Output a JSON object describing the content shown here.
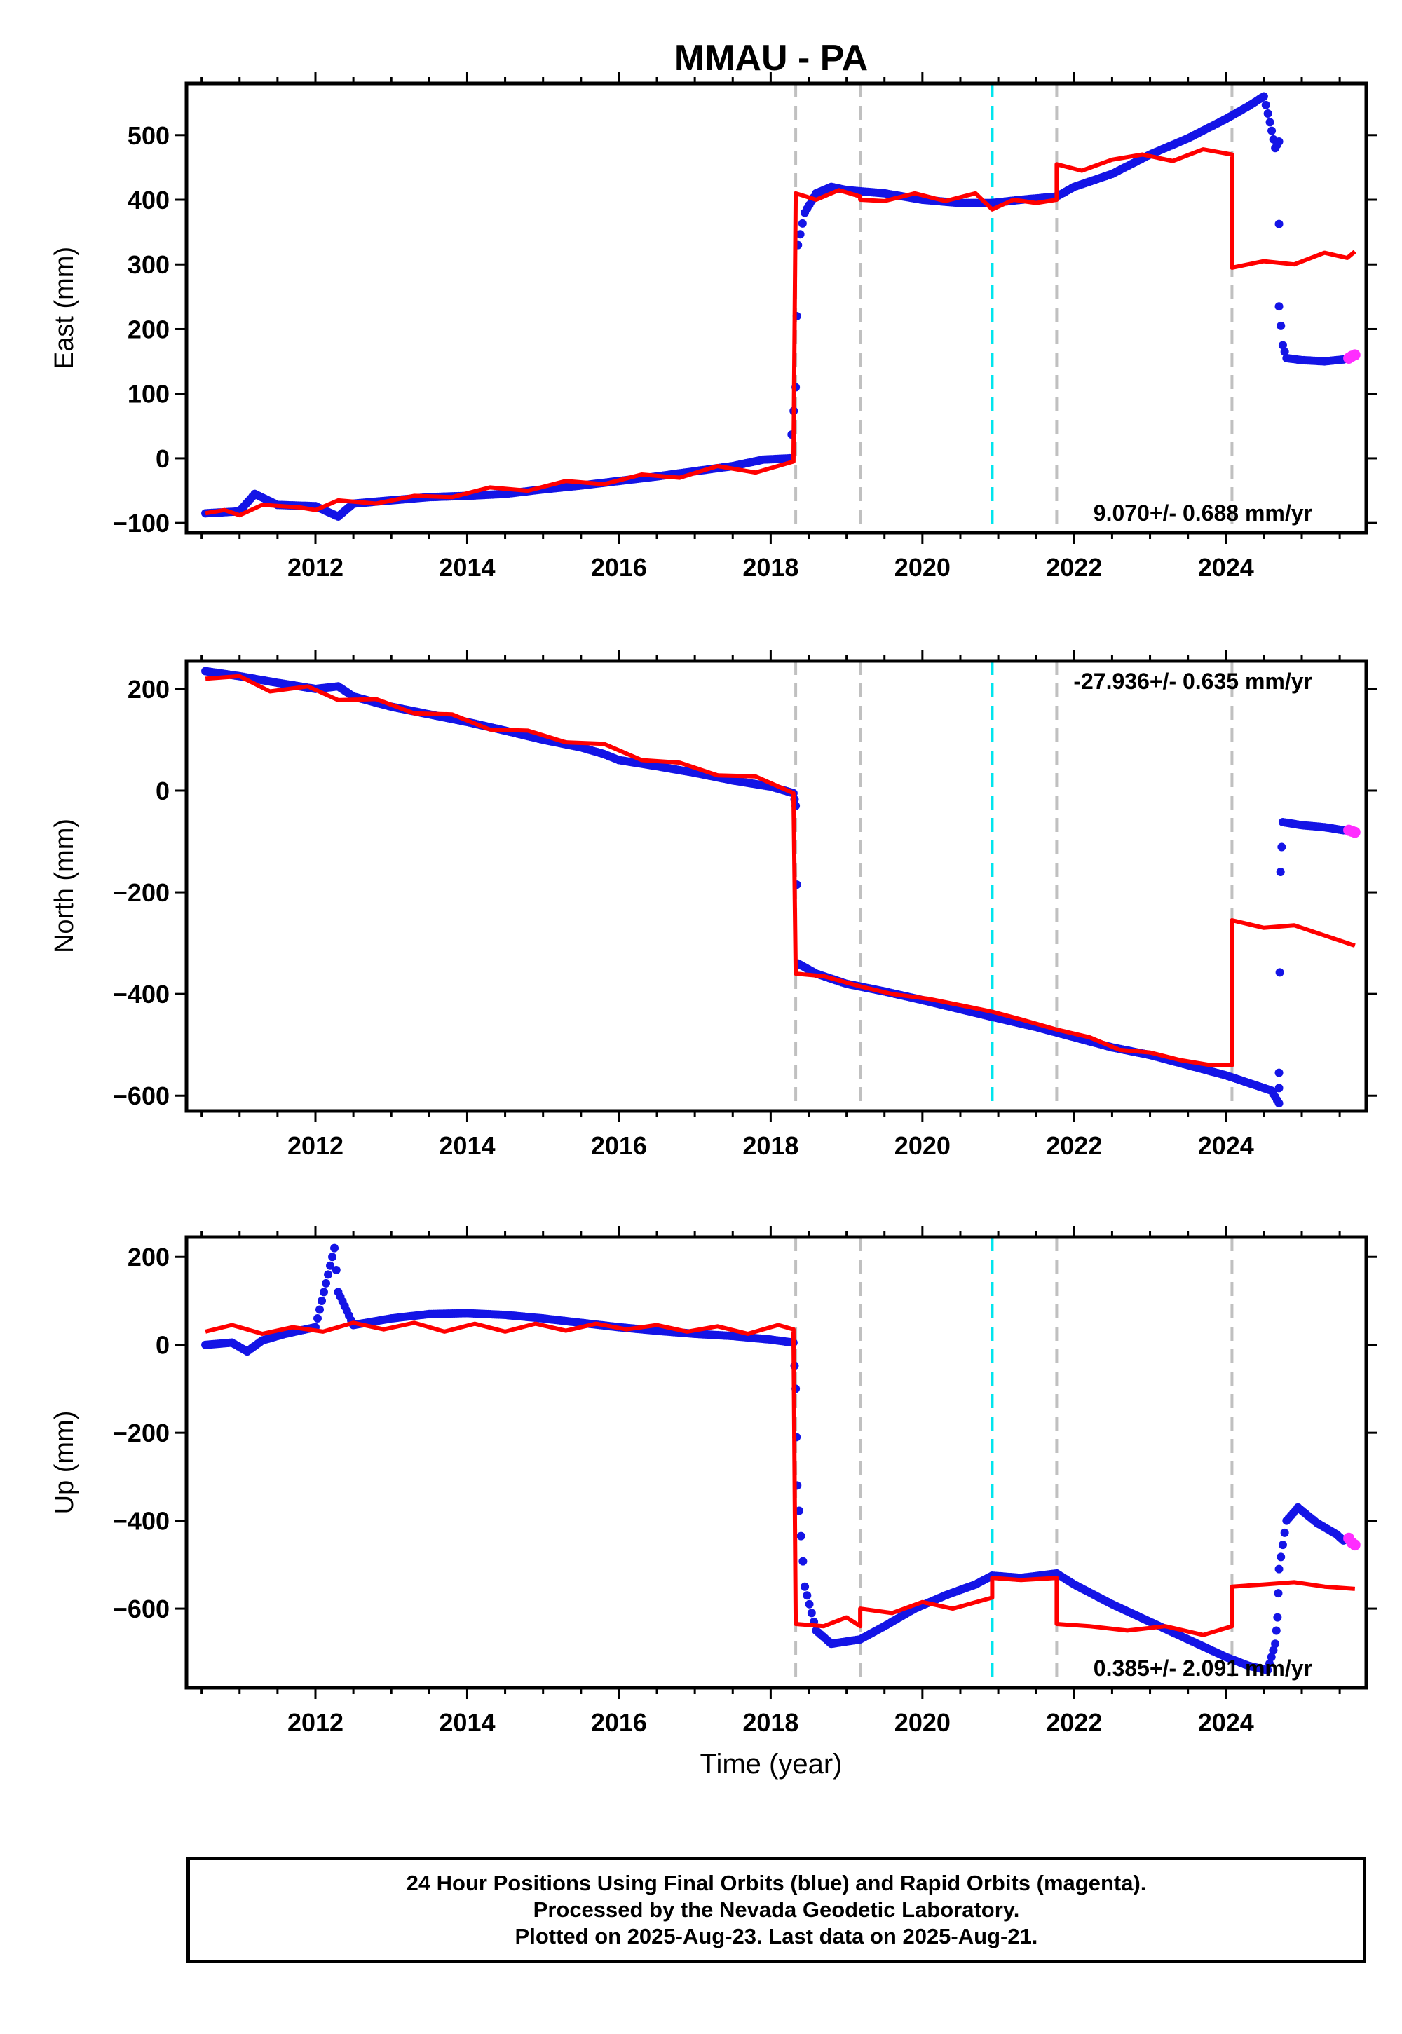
{
  "chart_data": {
    "type": "scatter",
    "title": "MMAU - PA",
    "xlabel": "Time (year)",
    "xlim": [
      2010.3,
      2025.85
    ],
    "xticks": [
      2012,
      2014,
      2016,
      2018,
      2020,
      2022,
      2024
    ],
    "event_lines": [
      {
        "x": 2018.33,
        "color": "#c0c0c0"
      },
      {
        "x": 2019.18,
        "color": "#c0c0c0"
      },
      {
        "x": 2020.92,
        "color": "#00e5ee"
      },
      {
        "x": 2021.77,
        "color": "#c0c0c0"
      },
      {
        "x": 2024.08,
        "color": "#c0c0c0"
      }
    ],
    "colors": {
      "final": "#1414e6",
      "rapid": "#ff2dff",
      "model": "#ff0000"
    },
    "panels": [
      {
        "ylabel": "East (mm)",
        "ylim": [
          -115,
          580
        ],
        "yticks": [
          -100,
          0,
          100,
          200,
          300,
          400,
          500
        ],
        "rate": "9.070+/- 0.688 mm/yr",
        "rate_position": "bottom-right",
        "final_points": [
          [
            2010.55,
            -85
          ],
          [
            2011.0,
            -82
          ],
          [
            2011.2,
            -55
          ],
          [
            2011.5,
            -72
          ],
          [
            2012.0,
            -74
          ],
          [
            2012.3,
            -90
          ],
          [
            2012.5,
            -70
          ],
          [
            2013.0,
            -65
          ],
          [
            2013.5,
            -60
          ],
          [
            2014.0,
            -58
          ],
          [
            2014.5,
            -55
          ],
          [
            2015.0,
            -48
          ],
          [
            2015.5,
            -42
          ],
          [
            2016.0,
            -35
          ],
          [
            2016.5,
            -28
          ],
          [
            2017.0,
            -20
          ],
          [
            2017.5,
            -12
          ],
          [
            2017.9,
            -2
          ],
          [
            2018.25,
            0
          ],
          [
            2018.33,
            110
          ],
          [
            2018.36,
            330
          ],
          [
            2018.45,
            380
          ],
          [
            2018.6,
            410
          ],
          [
            2018.8,
            420
          ],
          [
            2019.0,
            415
          ],
          [
            2019.5,
            410
          ],
          [
            2020.0,
            400
          ],
          [
            2020.5,
            395
          ],
          [
            2020.92,
            395
          ],
          [
            2021.3,
            400
          ],
          [
            2021.77,
            405
          ],
          [
            2022.0,
            420
          ],
          [
            2022.5,
            440
          ],
          [
            2023.0,
            470
          ],
          [
            2023.5,
            495
          ],
          [
            2024.0,
            525
          ],
          [
            2024.3,
            545
          ],
          [
            2024.5,
            560
          ],
          [
            2024.58,
            520
          ],
          [
            2024.65,
            480
          ],
          [
            2024.7,
            490
          ],
          [
            2024.7,
            235
          ],
          [
            2024.75,
            175
          ],
          [
            2024.8,
            155
          ],
          [
            2025.0,
            152
          ],
          [
            2025.3,
            150
          ],
          [
            2025.55,
            153
          ]
        ],
        "rapid_points": [
          [
            2025.62,
            155
          ],
          [
            2025.66,
            158
          ],
          [
            2025.7,
            160
          ]
        ],
        "model_points": [
          [
            2010.55,
            -85
          ],
          [
            2010.8,
            -80
          ],
          [
            2011.0,
            -88
          ],
          [
            2011.3,
            -72
          ],
          [
            2011.8,
            -76
          ],
          [
            2012.0,
            -80
          ],
          [
            2012.3,
            -65
          ],
          [
            2012.8,
            -70
          ],
          [
            2013.3,
            -58
          ],
          [
            2013.8,
            -60
          ],
          [
            2014.3,
            -45
          ],
          [
            2014.8,
            -50
          ],
          [
            2015.3,
            -35
          ],
          [
            2015.8,
            -40
          ],
          [
            2016.3,
            -25
          ],
          [
            2016.8,
            -30
          ],
          [
            2017.3,
            -12
          ],
          [
            2017.8,
            -22
          ],
          [
            2018.3,
            -5
          ],
          [
            2018.33,
            410
          ],
          [
            2018.6,
            400
          ],
          [
            2018.9,
            415
          ],
          [
            2019.18,
            405
          ],
          [
            2019.18,
            400
          ],
          [
            2019.5,
            398
          ],
          [
            2019.9,
            410
          ],
          [
            2020.3,
            398
          ],
          [
            2020.7,
            410
          ],
          [
            2020.92,
            385
          ],
          [
            2021.2,
            400
          ],
          [
            2021.5,
            395
          ],
          [
            2021.77,
            400
          ],
          [
            2021.77,
            455
          ],
          [
            2022.1,
            445
          ],
          [
            2022.5,
            462
          ],
          [
            2022.9,
            470
          ],
          [
            2023.3,
            460
          ],
          [
            2023.7,
            478
          ],
          [
            2024.08,
            470
          ],
          [
            2024.08,
            295
          ],
          [
            2024.5,
            305
          ],
          [
            2024.9,
            300
          ],
          [
            2025.3,
            318
          ],
          [
            2025.6,
            310
          ],
          [
            2025.7,
            320
          ]
        ]
      },
      {
        "ylabel": "North (mm)",
        "ylim": [
          -630,
          255
        ],
        "yticks": [
          -600,
          -400,
          -200,
          0,
          200
        ],
        "rate": "-27.936+/- 0.635 mm/yr",
        "rate_position": "top-right",
        "final_points": [
          [
            2010.55,
            235
          ],
          [
            2011.0,
            225
          ],
          [
            2011.5,
            212
          ],
          [
            2012.0,
            200
          ],
          [
            2012.3,
            205
          ],
          [
            2012.5,
            185
          ],
          [
            2013.0,
            165
          ],
          [
            2013.5,
            150
          ],
          [
            2014.0,
            135
          ],
          [
            2014.5,
            118
          ],
          [
            2015.0,
            100
          ],
          [
            2015.5,
            85
          ],
          [
            2015.8,
            72
          ],
          [
            2016.0,
            60
          ],
          [
            2016.5,
            48
          ],
          [
            2017.0,
            35
          ],
          [
            2017.5,
            20
          ],
          [
            2018.0,
            8
          ],
          [
            2018.3,
            -5
          ],
          [
            2018.33,
            -30
          ],
          [
            2018.36,
            -340
          ],
          [
            2018.6,
            -360
          ],
          [
            2019.0,
            -380
          ],
          [
            2019.5,
            -395
          ],
          [
            2020.0,
            -412
          ],
          [
            2020.5,
            -430
          ],
          [
            2020.92,
            -445
          ],
          [
            2021.5,
            -465
          ],
          [
            2022.0,
            -485
          ],
          [
            2022.5,
            -505
          ],
          [
            2023.0,
            -520
          ],
          [
            2023.5,
            -540
          ],
          [
            2024.0,
            -560
          ],
          [
            2024.3,
            -575
          ],
          [
            2024.6,
            -590
          ],
          [
            2024.7,
            -615
          ],
          [
            2024.7,
            -555
          ],
          [
            2024.72,
            -160
          ],
          [
            2024.75,
            -62
          ],
          [
            2025.0,
            -68
          ],
          [
            2025.3,
            -72
          ],
          [
            2025.55,
            -78
          ]
        ],
        "rapid_points": [
          [
            2025.62,
            -78
          ],
          [
            2025.66,
            -80
          ],
          [
            2025.7,
            -82
          ]
        ],
        "model_points": [
          [
            2010.55,
            220
          ],
          [
            2011.0,
            225
          ],
          [
            2011.4,
            195
          ],
          [
            2011.9,
            205
          ],
          [
            2012.3,
            178
          ],
          [
            2012.8,
            180
          ],
          [
            2013.3,
            152
          ],
          [
            2013.8,
            150
          ],
          [
            2014.3,
            120
          ],
          [
            2014.8,
            118
          ],
          [
            2015.3,
            95
          ],
          [
            2015.8,
            92
          ],
          [
            2016.3,
            60
          ],
          [
            2016.8,
            55
          ],
          [
            2017.3,
            30
          ],
          [
            2017.8,
            28
          ],
          [
            2018.3,
            -5
          ],
          [
            2018.33,
            -360
          ],
          [
            2018.7,
            -365
          ],
          [
            2019.18,
            -385
          ],
          [
            2019.6,
            -400
          ],
          [
            2020.1,
            -410
          ],
          [
            2020.6,
            -425
          ],
          [
            2020.92,
            -435
          ],
          [
            2021.3,
            -450
          ],
          [
            2021.77,
            -470
          ],
          [
            2022.2,
            -485
          ],
          [
            2022.6,
            -510
          ],
          [
            2023.0,
            -515
          ],
          [
            2023.4,
            -530
          ],
          [
            2023.8,
            -540
          ],
          [
            2024.08,
            -540
          ],
          [
            2024.08,
            -255
          ],
          [
            2024.5,
            -270
          ],
          [
            2024.9,
            -265
          ],
          [
            2025.3,
            -285
          ],
          [
            2025.7,
            -305
          ]
        ]
      },
      {
        "ylabel": "Up (mm)",
        "ylim": [
          -780,
          245
        ],
        "yticks": [
          -600,
          -400,
          -200,
          0,
          200
        ],
        "rate": "0.385+/- 2.091 mm/yr",
        "rate_position": "bottom-right",
        "final_points": [
          [
            2010.55,
            0
          ],
          [
            2010.9,
            5
          ],
          [
            2011.1,
            -15
          ],
          [
            2011.3,
            10
          ],
          [
            2011.6,
            25
          ],
          [
            2012.0,
            40
          ],
          [
            2012.25,
            220
          ],
          [
            2012.3,
            120
          ],
          [
            2012.5,
            45
          ],
          [
            2013.0,
            60
          ],
          [
            2013.5,
            70
          ],
          [
            2014.0,
            72
          ],
          [
            2014.5,
            68
          ],
          [
            2015.0,
            60
          ],
          [
            2015.5,
            50
          ],
          [
            2016.0,
            40
          ],
          [
            2016.5,
            32
          ],
          [
            2017.0,
            25
          ],
          [
            2017.5,
            20
          ],
          [
            2018.0,
            12
          ],
          [
            2018.3,
            5
          ],
          [
            2018.33,
            -100
          ],
          [
            2018.35,
            -320
          ],
          [
            2018.45,
            -550
          ],
          [
            2018.6,
            -650
          ],
          [
            2018.8,
            -680
          ],
          [
            2019.18,
            -670
          ],
          [
            2019.5,
            -640
          ],
          [
            2019.9,
            -600
          ],
          [
            2020.3,
            -570
          ],
          [
            2020.7,
            -545
          ],
          [
            2020.92,
            -525
          ],
          [
            2021.3,
            -530
          ],
          [
            2021.77,
            -520
          ],
          [
            2022.0,
            -545
          ],
          [
            2022.5,
            -590
          ],
          [
            2023.0,
            -630
          ],
          [
            2023.5,
            -670
          ],
          [
            2024.0,
            -710
          ],
          [
            2024.3,
            -730
          ],
          [
            2024.55,
            -740
          ],
          [
            2024.65,
            -680
          ],
          [
            2024.68,
            -620
          ],
          [
            2024.7,
            -510
          ],
          [
            2024.8,
            -400
          ],
          [
            2024.95,
            -370
          ],
          [
            2025.2,
            -405
          ],
          [
            2025.45,
            -430
          ],
          [
            2025.55,
            -445
          ]
        ],
        "rapid_points": [
          [
            2025.62,
            -440
          ],
          [
            2025.66,
            -450
          ],
          [
            2025.7,
            -455
          ]
        ],
        "model_points": [
          [
            2010.55,
            30
          ],
          [
            2010.9,
            45
          ],
          [
            2011.3,
            25
          ],
          [
            2011.7,
            40
          ],
          [
            2012.1,
            30
          ],
          [
            2012.5,
            50
          ],
          [
            2012.9,
            35
          ],
          [
            2013.3,
            50
          ],
          [
            2013.7,
            30
          ],
          [
            2014.1,
            48
          ],
          [
            2014.5,
            30
          ],
          [
            2014.9,
            48
          ],
          [
            2015.3,
            32
          ],
          [
            2015.7,
            48
          ],
          [
            2016.1,
            35
          ],
          [
            2016.5,
            45
          ],
          [
            2016.9,
            30
          ],
          [
            2017.3,
            42
          ],
          [
            2017.7,
            25
          ],
          [
            2018.1,
            45
          ],
          [
            2018.3,
            35
          ],
          [
            2018.33,
            -635
          ],
          [
            2018.7,
            -640
          ],
          [
            2019.0,
            -620
          ],
          [
            2019.18,
            -640
          ],
          [
            2019.18,
            -600
          ],
          [
            2019.6,
            -610
          ],
          [
            2020.0,
            -585
          ],
          [
            2020.4,
            -600
          ],
          [
            2020.92,
            -575
          ],
          [
            2020.92,
            -530
          ],
          [
            2021.3,
            -535
          ],
          [
            2021.77,
            -530
          ],
          [
            2021.77,
            -635
          ],
          [
            2022.2,
            -640
          ],
          [
            2022.7,
            -650
          ],
          [
            2023.2,
            -640
          ],
          [
            2023.7,
            -660
          ],
          [
            2024.08,
            -640
          ],
          [
            2024.08,
            -550
          ],
          [
            2024.5,
            -545
          ],
          [
            2024.9,
            -540
          ],
          [
            2025.3,
            -550
          ],
          [
            2025.7,
            -555
          ]
        ]
      }
    ]
  },
  "footer": {
    "lines": [
      "24 Hour Positions Using Final Orbits (blue) and Rapid Orbits (magenta).",
      "Processed by the Nevada Geodetic Laboratory.",
      "Plotted on 2025-Aug-23. Last data on 2025-Aug-21."
    ]
  }
}
